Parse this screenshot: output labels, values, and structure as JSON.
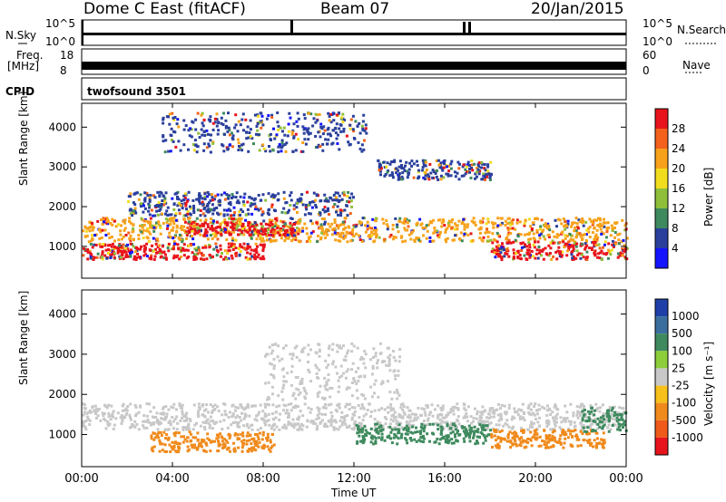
{
  "header": {
    "station": "Dome C East (fitACF)",
    "beam": "Beam 07",
    "date": "20/Jan/2015"
  },
  "summary_panels": {
    "nsky_label": "N.Sky",
    "nsky_ticks": [
      "10^5",
      "10^0"
    ],
    "nsearch_label": "N.Search",
    "nsearch_ticks": [
      "10^5",
      "10^0"
    ],
    "freq_label": "Freq.",
    "freq_unit": "[MHz]",
    "freq_ticks": [
      "18",
      "8"
    ],
    "nave_label": "Nave",
    "nave_ticks": [
      "60",
      "0"
    ],
    "cpid_label": "CPID",
    "cpid_value": "twofsound 3501"
  },
  "chart_data": [
    {
      "type": "heatmap",
      "name": "power-panel",
      "ylabel": "Slant Range [km]",
      "ylim": [
        200,
        4600
      ],
      "yticks": [
        "4000",
        "3000",
        "2000",
        "1000"
      ],
      "colorbar_label": "Power [dB]",
      "colorbar_ticks": [
        "28",
        "24",
        "20",
        "16",
        "12",
        "8",
        "4"
      ],
      "colorbar_colors": [
        "#e8141c",
        "#f4611c",
        "#f7a21a",
        "#f2dc1e",
        "#8fbf3a",
        "#3e8a5e",
        "#2a3f9c",
        "#1414ff"
      ],
      "bands": [
        {
          "start": 0.0,
          "end": 24.0,
          "range_low": 1150,
          "range_high": 1750,
          "level": "medium"
        },
        {
          "start": 0.0,
          "end": 8.0,
          "range_low": 700,
          "range_high": 1100,
          "level": "high"
        },
        {
          "start": 4.5,
          "end": 9.5,
          "range_low": 1300,
          "range_high": 1650,
          "level": "high"
        },
        {
          "start": 18.0,
          "end": 24.0,
          "range_low": 700,
          "range_high": 1150,
          "level": "high"
        },
        {
          "start": 2.0,
          "end": 12.0,
          "range_low": 1800,
          "range_high": 2400,
          "level": "low"
        },
        {
          "start": 3.5,
          "end": 12.5,
          "range_low": 3400,
          "range_high": 4400,
          "level": "low"
        },
        {
          "start": 13.0,
          "end": 18.0,
          "range_low": 2700,
          "range_high": 3200,
          "level": "low"
        }
      ]
    },
    {
      "type": "heatmap",
      "name": "velocity-panel",
      "ylabel": "Slant Range [km]",
      "ylim": [
        200,
        4600
      ],
      "yticks": [
        "4000",
        "3000",
        "2000",
        "1000"
      ],
      "colorbar_label": "Velocity [m s⁻¹]",
      "colorbar_ticks": [
        "1000",
        "500",
        "100",
        "25",
        "-25",
        "-100",
        "-500",
        "-1000"
      ],
      "colorbar_colors": [
        "#1f3fa8",
        "#3a6e9e",
        "#3e8a5e",
        "#8ccd3a",
        "#c8c8c8",
        "#f7c01a",
        "#f08a1c",
        "#ef5a1a",
        "#e8141c"
      ],
      "bands": [
        {
          "start": 0.0,
          "end": 24.0,
          "range_low": 1150,
          "range_high": 1800,
          "level": "grey"
        },
        {
          "start": 3.0,
          "end": 8.5,
          "range_low": 600,
          "range_high": 1100,
          "level": "orange"
        },
        {
          "start": 12.0,
          "end": 18.0,
          "range_low": 800,
          "range_high": 1300,
          "level": "green"
        },
        {
          "start": 18.0,
          "end": 23.0,
          "range_low": 700,
          "range_high": 1150,
          "level": "orange"
        },
        {
          "start": 8.0,
          "end": 14.0,
          "range_low": 1900,
          "range_high": 3300,
          "level": "grey"
        },
        {
          "start": 22.0,
          "end": 24.0,
          "range_low": 1100,
          "range_high": 1700,
          "level": "green"
        }
      ]
    }
  ],
  "time_axis": {
    "label": "Time UT",
    "ticks": [
      "00:00",
      "04:00",
      "08:00",
      "12:00",
      "16:00",
      "20:00",
      "00:00"
    ]
  }
}
